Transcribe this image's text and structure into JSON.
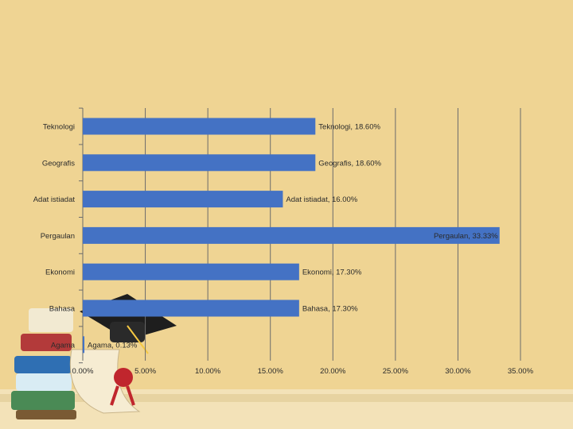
{
  "chart_data": {
    "type": "bar",
    "orientation": "horizontal",
    "categories": [
      "Teknologi",
      "Geografis",
      "Adat istiadat",
      "Pergaulan",
      "Ekonomi",
      "Bahasa",
      "Agama"
    ],
    "values": [
      18.6,
      18.6,
      16.0,
      33.33,
      17.3,
      17.3,
      0.13
    ],
    "data_labels": [
      "Teknologi, 18.60%",
      "Geografis, 18.60%",
      "Adat istiadat, 16.00%",
      "Pergaulan, 33.33%",
      "Ekonomi, 17.30%",
      "Bahasa, 17.30%",
      "Agama, 0.13%"
    ],
    "xlim": [
      0,
      35
    ],
    "x_ticks": [
      0,
      5,
      10,
      15,
      20,
      25,
      30,
      35
    ],
    "x_tick_labels": [
      "0.00%",
      "5.00%",
      "10.00%",
      "15.00%",
      "20.00%",
      "25.00%",
      "30.00%",
      "35.00%"
    ],
    "grid": "vertical",
    "legend": "none",
    "title": "",
    "xlabel": "",
    "ylabel": "",
    "colors": {
      "bar": "#4472c4",
      "gridline": "#6b6b6b",
      "background": "#efd493"
    }
  }
}
